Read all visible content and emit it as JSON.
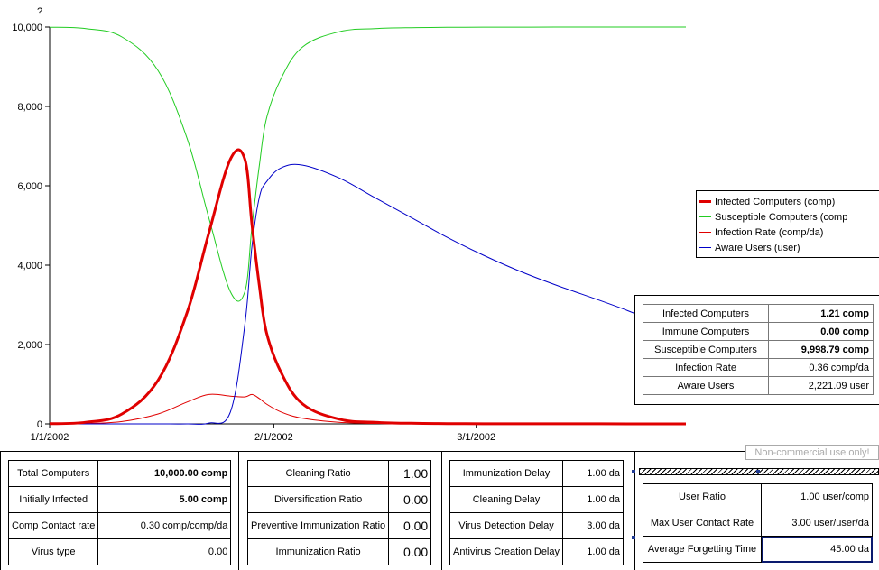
{
  "chart_data": {
    "type": "line",
    "title": "?",
    "x_range": [
      "1/1/2002",
      "3/30/2002"
    ],
    "x_ticks": [
      "1/1/2002",
      "2/1/2002",
      "3/1/2002"
    ],
    "ylim": [
      0,
      10000
    ],
    "y_ticks": [
      "0",
      "2,000",
      "4,000",
      "6,000",
      "8,000",
      "10,000"
    ],
    "grid": false,
    "legend_position": "right",
    "x_days": [
      0,
      5,
      10,
      15,
      19,
      22,
      25,
      27,
      28,
      29,
      30,
      32,
      35,
      40,
      45,
      50,
      55,
      60,
      65,
      70,
      80,
      88
    ],
    "x": [
      "1/1/2002",
      "1/6/2002",
      "1/11/2002",
      "1/16/2002",
      "1/20/2002",
      "1/23/2002",
      "1/26/2002",
      "1/28/2002",
      "1/29/2002",
      "1/30/2002",
      "1/31/2002",
      "2/2/2002",
      "2/5/2002",
      "2/10/2002",
      "2/15/2002",
      "2/20/2002",
      "2/25/2002",
      "3/2/2002",
      "3/7/2002",
      "3/12/2002",
      "3/22/2002",
      "3/30/2002"
    ],
    "series": [
      {
        "name": "Infected Computers (comp)",
        "color": "#e00000",
        "width": 3,
        "values": [
          5,
          40,
          250,
          1100,
          2800,
          4800,
          6670,
          6670,
          5000,
          3500,
          2300,
          1300,
          500,
          120,
          40,
          15,
          6,
          3,
          2,
          2,
          1,
          1
        ]
      },
      {
        "name": "Susceptible Computers (comp",
        "color": "#22cc22",
        "width": 1,
        "values": [
          9995,
          9960,
          9750,
          8900,
          7200,
          5200,
          3330,
          3330,
          5000,
          6500,
          7700,
          8700,
          9500,
          9880,
          9960,
          9985,
          9994,
          9997,
          9998,
          9999,
          9999,
          9999
        ]
      },
      {
        "name": "Infection Rate (comp/da)",
        "color": "#e00000",
        "width": 1,
        "values": [
          1,
          10,
          60,
          250,
          550,
          740,
          700,
          680,
          740,
          640,
          500,
          300,
          140,
          40,
          12,
          5,
          2,
          1,
          0.5,
          0.4,
          0.4,
          0.36
        ]
      },
      {
        "name": "Aware Users (user)",
        "color": "#0000c8",
        "width": 1,
        "values": [
          0,
          0,
          0,
          0,
          0,
          20,
          300,
          2500,
          4500,
          5700,
          6100,
          6450,
          6520,
          6200,
          5700,
          5200,
          4700,
          4250,
          3850,
          3500,
          2850,
          2221
        ]
      }
    ]
  },
  "value_table": {
    "rows": [
      {
        "label": "Infected Computers",
        "value": "1.21 comp",
        "bold": true
      },
      {
        "label": "Immune Computers",
        "value": "0.00 comp",
        "bold": true
      },
      {
        "label": "Susceptible Computers",
        "value": "9,998.79 comp",
        "bold": true
      },
      {
        "label": "Infection Rate",
        "value": "0.36 comp/da",
        "bold": false
      },
      {
        "label": "Aware Users",
        "value": "2,221.09 user",
        "bold": false
      }
    ]
  },
  "watermark": "Non-commercial use only!",
  "controls": {
    "group1": [
      {
        "label": "Total Computers",
        "value": "10,000.00 comp",
        "bold": true
      },
      {
        "label": "Initially Infected",
        "value": "5.00 comp",
        "bold": true
      },
      {
        "label": "Comp Contact rate",
        "value": "0.30 comp/comp/da",
        "bold": false
      },
      {
        "label": "Virus type",
        "value": "0.00",
        "bold": false
      }
    ],
    "group2": [
      {
        "label": "Cleaning Ratio",
        "value": "1.00"
      },
      {
        "label": "Diversification Ratio",
        "value": "0.00"
      },
      {
        "label": "Preventive Immunization Ratio",
        "value": "0.00"
      },
      {
        "label": "Immunization Ratio",
        "value": "0.00"
      }
    ],
    "group3": [
      {
        "label": "Immunization Delay",
        "value": "1.00 da"
      },
      {
        "label": "Cleaning Delay",
        "value": "1.00 da"
      },
      {
        "label": "Virus Detection Delay",
        "value": "3.00 da"
      },
      {
        "label": "Antivirus Creation Delay",
        "value": "1.00 da"
      }
    ],
    "group4": [
      {
        "label": "User Ratio",
        "value": "1.00 user/comp"
      },
      {
        "label": "Max User Contact Rate",
        "value": "3.00 user/user/da"
      },
      {
        "label": "Average Forgetting Time",
        "value": "45.00 da"
      }
    ]
  }
}
